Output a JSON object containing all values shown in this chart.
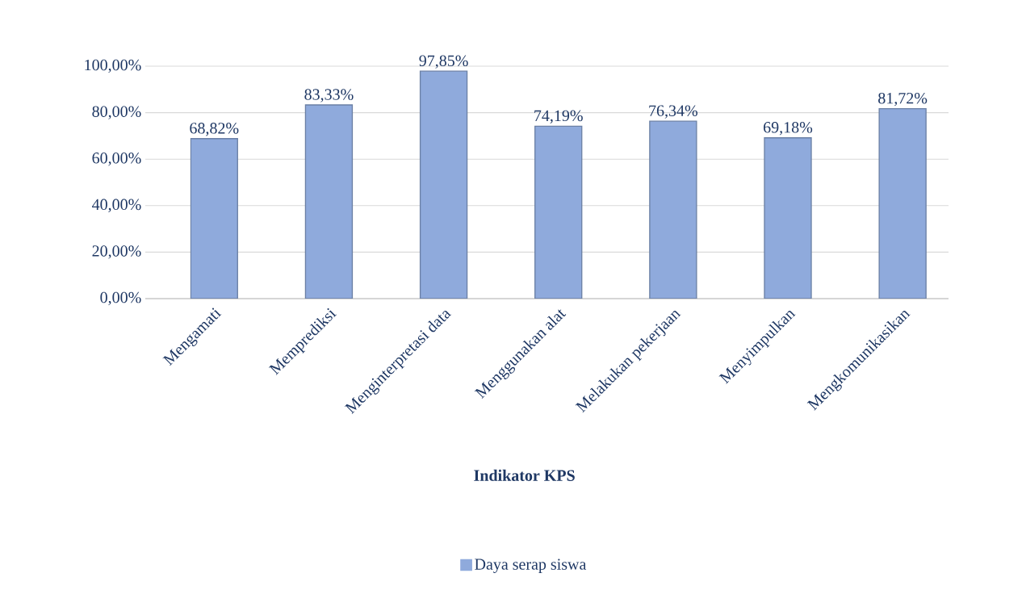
{
  "chart_data": {
    "type": "bar",
    "xlabel": "Indikator KPS",
    "categories": [
      "Mengamati",
      "Memprediksi",
      "Menginterpretasi data",
      "Menggunakan alat",
      "Melakukan pekerjaan",
      "Menyimpulkan",
      "Mengkomunikasikan"
    ],
    "series": [
      {
        "name": "Daya serap siswa",
        "color": "#8faadc",
        "values": [
          68.82,
          83.33,
          97.85,
          74.19,
          76.34,
          69.18,
          81.72
        ],
        "value_labels": [
          "68,82%",
          "83,33%",
          "97,85%",
          "74,19%",
          "76,34%",
          "69,18%",
          "81,72%"
        ]
      }
    ],
    "ylim": [
      0,
      100
    ],
    "yticks": [
      {
        "value": 0,
        "label": "0,00%"
      },
      {
        "value": 20,
        "label": "20,00%"
      },
      {
        "value": 40,
        "label": "40,00%"
      },
      {
        "value": 60,
        "label": "60,00%"
      },
      {
        "value": 80,
        "label": "80,00%"
      },
      {
        "value": 100,
        "label": "100,00%"
      }
    ],
    "grid": "y",
    "legend": "bottom"
  }
}
